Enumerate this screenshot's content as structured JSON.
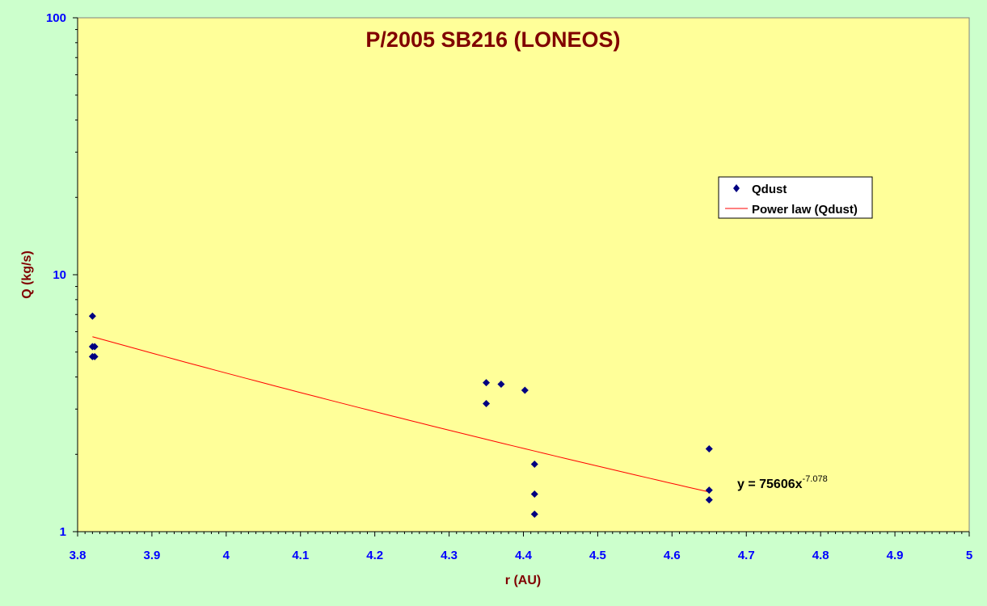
{
  "colors": {
    "page_background": "#ccffcc",
    "plot_background": "#ffff99",
    "title": "#800000",
    "axis_title": "#800000",
    "tick_labels": "#0000ff",
    "marker": "#000080",
    "trendline": "#ff0000",
    "legend_background": "#ffffff",
    "equation": "#000000"
  },
  "chart_data": {
    "type": "scatter",
    "title": "P/2005 SB216 (LONEOS)",
    "xlabel": "r (AU)",
    "ylabel": "Q (kg/s)",
    "xlim": [
      3.8,
      5
    ],
    "ylim": [
      1,
      100
    ],
    "y_scale": "log",
    "grid": false,
    "x_ticks": [
      "3.8",
      "3.9",
      "4",
      "4.1",
      "4.2",
      "4.3",
      "4.4",
      "4.5",
      "4.6",
      "4.7",
      "4.8",
      "4.9",
      "5"
    ],
    "y_ticks": [
      "1",
      "10",
      "100"
    ],
    "legend": {
      "position": "top-right",
      "entries": [
        "Qdust",
        "Power law (Qdust)"
      ]
    },
    "series": [
      {
        "name": "Qdust",
        "marker": "diamond",
        "points": [
          {
            "x": 3.82,
            "y": 6.9
          },
          {
            "x": 3.82,
            "y": 5.25
          },
          {
            "x": 3.823,
            "y": 5.25
          },
          {
            "x": 3.82,
            "y": 4.8
          },
          {
            "x": 3.823,
            "y": 4.8
          },
          {
            "x": 4.35,
            "y": 3.8
          },
          {
            "x": 4.35,
            "y": 3.15
          },
          {
            "x": 4.37,
            "y": 3.75
          },
          {
            "x": 4.402,
            "y": 3.55
          },
          {
            "x": 4.415,
            "y": 1.83
          },
          {
            "x": 4.415,
            "y": 1.4
          },
          {
            "x": 4.415,
            "y": 1.17
          },
          {
            "x": 4.65,
            "y": 2.1
          },
          {
            "x": 4.65,
            "y": 1.45
          },
          {
            "x": 4.65,
            "y": 1.33
          }
        ]
      }
    ],
    "trendline": {
      "name": "Power law (Qdust)",
      "coefficient": 75606,
      "exponent": -7.078,
      "x_range": [
        3.82,
        4.65
      ],
      "equation_base": "y = 75606x",
      "equation_exponent": "-7.078"
    }
  }
}
